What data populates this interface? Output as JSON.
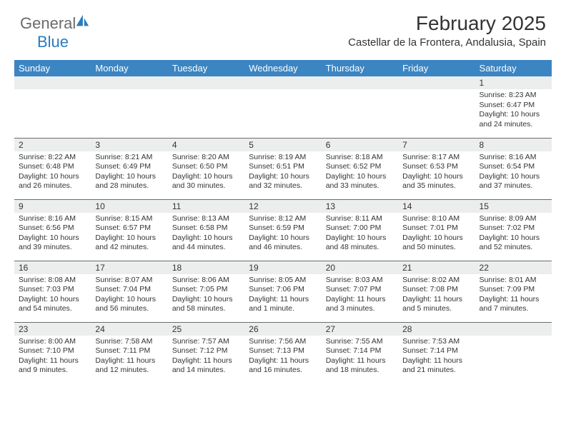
{
  "logo": {
    "text1": "General",
    "text2": "Blue"
  },
  "title": "February 2025",
  "location": "Castellar de la Frontera, Andalusia, Spain",
  "colors": {
    "header_bg": "#3b85c3",
    "header_text": "#ffffff",
    "daynum_bg": "#eceded",
    "text": "#333333",
    "logo_gray": "#6b6b6b",
    "logo_blue": "#2b7bbf",
    "rule": "#6b6b6b",
    "background": "#ffffff"
  },
  "dayHeaders": [
    "Sunday",
    "Monday",
    "Tuesday",
    "Wednesday",
    "Thursday",
    "Friday",
    "Saturday"
  ],
  "weeks": [
    [
      {
        "n": "",
        "sunrise": "",
        "sunset": "",
        "daylight": ""
      },
      {
        "n": "",
        "sunrise": "",
        "sunset": "",
        "daylight": ""
      },
      {
        "n": "",
        "sunrise": "",
        "sunset": "",
        "daylight": ""
      },
      {
        "n": "",
        "sunrise": "",
        "sunset": "",
        "daylight": ""
      },
      {
        "n": "",
        "sunrise": "",
        "sunset": "",
        "daylight": ""
      },
      {
        "n": "",
        "sunrise": "",
        "sunset": "",
        "daylight": ""
      },
      {
        "n": "1",
        "sunrise": "Sunrise: 8:23 AM",
        "sunset": "Sunset: 6:47 PM",
        "daylight": "Daylight: 10 hours and 24 minutes."
      }
    ],
    [
      {
        "n": "2",
        "sunrise": "Sunrise: 8:22 AM",
        "sunset": "Sunset: 6:48 PM",
        "daylight": "Daylight: 10 hours and 26 minutes."
      },
      {
        "n": "3",
        "sunrise": "Sunrise: 8:21 AM",
        "sunset": "Sunset: 6:49 PM",
        "daylight": "Daylight: 10 hours and 28 minutes."
      },
      {
        "n": "4",
        "sunrise": "Sunrise: 8:20 AM",
        "sunset": "Sunset: 6:50 PM",
        "daylight": "Daylight: 10 hours and 30 minutes."
      },
      {
        "n": "5",
        "sunrise": "Sunrise: 8:19 AM",
        "sunset": "Sunset: 6:51 PM",
        "daylight": "Daylight: 10 hours and 32 minutes."
      },
      {
        "n": "6",
        "sunrise": "Sunrise: 8:18 AM",
        "sunset": "Sunset: 6:52 PM",
        "daylight": "Daylight: 10 hours and 33 minutes."
      },
      {
        "n": "7",
        "sunrise": "Sunrise: 8:17 AM",
        "sunset": "Sunset: 6:53 PM",
        "daylight": "Daylight: 10 hours and 35 minutes."
      },
      {
        "n": "8",
        "sunrise": "Sunrise: 8:16 AM",
        "sunset": "Sunset: 6:54 PM",
        "daylight": "Daylight: 10 hours and 37 minutes."
      }
    ],
    [
      {
        "n": "9",
        "sunrise": "Sunrise: 8:16 AM",
        "sunset": "Sunset: 6:56 PM",
        "daylight": "Daylight: 10 hours and 39 minutes."
      },
      {
        "n": "10",
        "sunrise": "Sunrise: 8:15 AM",
        "sunset": "Sunset: 6:57 PM",
        "daylight": "Daylight: 10 hours and 42 minutes."
      },
      {
        "n": "11",
        "sunrise": "Sunrise: 8:13 AM",
        "sunset": "Sunset: 6:58 PM",
        "daylight": "Daylight: 10 hours and 44 minutes."
      },
      {
        "n": "12",
        "sunrise": "Sunrise: 8:12 AM",
        "sunset": "Sunset: 6:59 PM",
        "daylight": "Daylight: 10 hours and 46 minutes."
      },
      {
        "n": "13",
        "sunrise": "Sunrise: 8:11 AM",
        "sunset": "Sunset: 7:00 PM",
        "daylight": "Daylight: 10 hours and 48 minutes."
      },
      {
        "n": "14",
        "sunrise": "Sunrise: 8:10 AM",
        "sunset": "Sunset: 7:01 PM",
        "daylight": "Daylight: 10 hours and 50 minutes."
      },
      {
        "n": "15",
        "sunrise": "Sunrise: 8:09 AM",
        "sunset": "Sunset: 7:02 PM",
        "daylight": "Daylight: 10 hours and 52 minutes."
      }
    ],
    [
      {
        "n": "16",
        "sunrise": "Sunrise: 8:08 AM",
        "sunset": "Sunset: 7:03 PM",
        "daylight": "Daylight: 10 hours and 54 minutes."
      },
      {
        "n": "17",
        "sunrise": "Sunrise: 8:07 AM",
        "sunset": "Sunset: 7:04 PM",
        "daylight": "Daylight: 10 hours and 56 minutes."
      },
      {
        "n": "18",
        "sunrise": "Sunrise: 8:06 AM",
        "sunset": "Sunset: 7:05 PM",
        "daylight": "Daylight: 10 hours and 58 minutes."
      },
      {
        "n": "19",
        "sunrise": "Sunrise: 8:05 AM",
        "sunset": "Sunset: 7:06 PM",
        "daylight": "Daylight: 11 hours and 1 minute."
      },
      {
        "n": "20",
        "sunrise": "Sunrise: 8:03 AM",
        "sunset": "Sunset: 7:07 PM",
        "daylight": "Daylight: 11 hours and 3 minutes."
      },
      {
        "n": "21",
        "sunrise": "Sunrise: 8:02 AM",
        "sunset": "Sunset: 7:08 PM",
        "daylight": "Daylight: 11 hours and 5 minutes."
      },
      {
        "n": "22",
        "sunrise": "Sunrise: 8:01 AM",
        "sunset": "Sunset: 7:09 PM",
        "daylight": "Daylight: 11 hours and 7 minutes."
      }
    ],
    [
      {
        "n": "23",
        "sunrise": "Sunrise: 8:00 AM",
        "sunset": "Sunset: 7:10 PM",
        "daylight": "Daylight: 11 hours and 9 minutes."
      },
      {
        "n": "24",
        "sunrise": "Sunrise: 7:58 AM",
        "sunset": "Sunset: 7:11 PM",
        "daylight": "Daylight: 11 hours and 12 minutes."
      },
      {
        "n": "25",
        "sunrise": "Sunrise: 7:57 AM",
        "sunset": "Sunset: 7:12 PM",
        "daylight": "Daylight: 11 hours and 14 minutes."
      },
      {
        "n": "26",
        "sunrise": "Sunrise: 7:56 AM",
        "sunset": "Sunset: 7:13 PM",
        "daylight": "Daylight: 11 hours and 16 minutes."
      },
      {
        "n": "27",
        "sunrise": "Sunrise: 7:55 AM",
        "sunset": "Sunset: 7:14 PM",
        "daylight": "Daylight: 11 hours and 18 minutes."
      },
      {
        "n": "28",
        "sunrise": "Sunrise: 7:53 AM",
        "sunset": "Sunset: 7:14 PM",
        "daylight": "Daylight: 11 hours and 21 minutes."
      },
      {
        "n": "",
        "sunrise": "",
        "sunset": "",
        "daylight": ""
      }
    ]
  ]
}
